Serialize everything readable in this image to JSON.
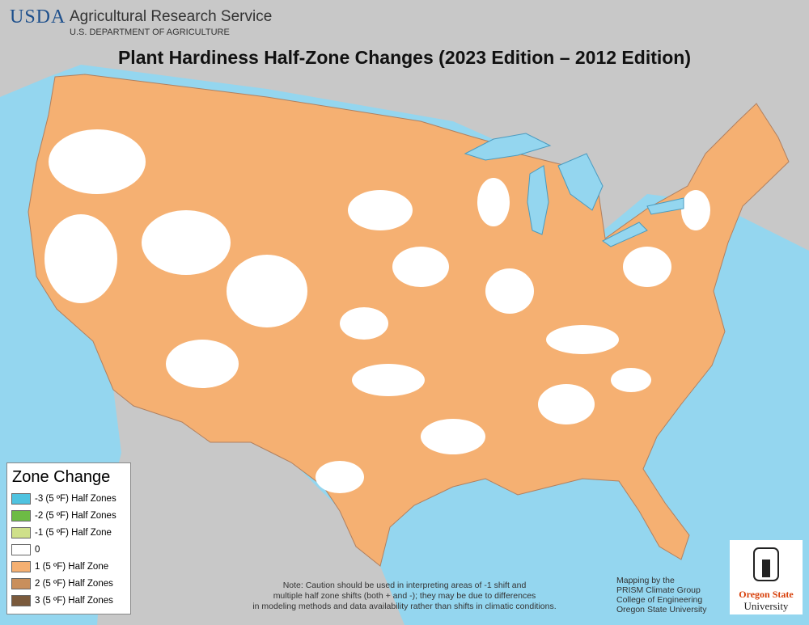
{
  "header": {
    "logo": "USDA",
    "agency": "Agricultural Research Service",
    "department": "U.S. DEPARTMENT OF AGRICULTURE"
  },
  "title": "Plant Hardiness Half-Zone Changes (2023 Edition – 2012 Edition)",
  "legend": {
    "title": "Zone Change",
    "items": [
      {
        "label": "-3 (5 ºF) Half Zones",
        "color": "#4fc3e0"
      },
      {
        "label": "-2 (5 ºF) Half Zones",
        "color": "#6dbb45"
      },
      {
        "label": "-1 (5 ºF) Half Zone",
        "color": "#cfe08a"
      },
      {
        "label": "0",
        "color": "#ffffff"
      },
      {
        "label": "1 (5 ºF) Half Zone",
        "color": "#f5b072"
      },
      {
        "label": "2 (5 ºF) Half Zones",
        "color": "#c98f5c"
      },
      {
        "label": "3 (5 ºF) Half Zones",
        "color": "#7a5a3c"
      }
    ]
  },
  "note": [
    "Note:  Caution should be used in interpreting areas of -1 shift and",
    "multiple half zone shifts (both + and -); they may be due to differences",
    "in modeling methods and data availability rather than shifts in climatic conditions."
  ],
  "credits": [
    "Mapping by the",
    "PRISM Climate Group",
    "College of Engineering",
    "Oregon State University"
  ],
  "university_logo": [
    "Oregon State",
    "University"
  ]
}
